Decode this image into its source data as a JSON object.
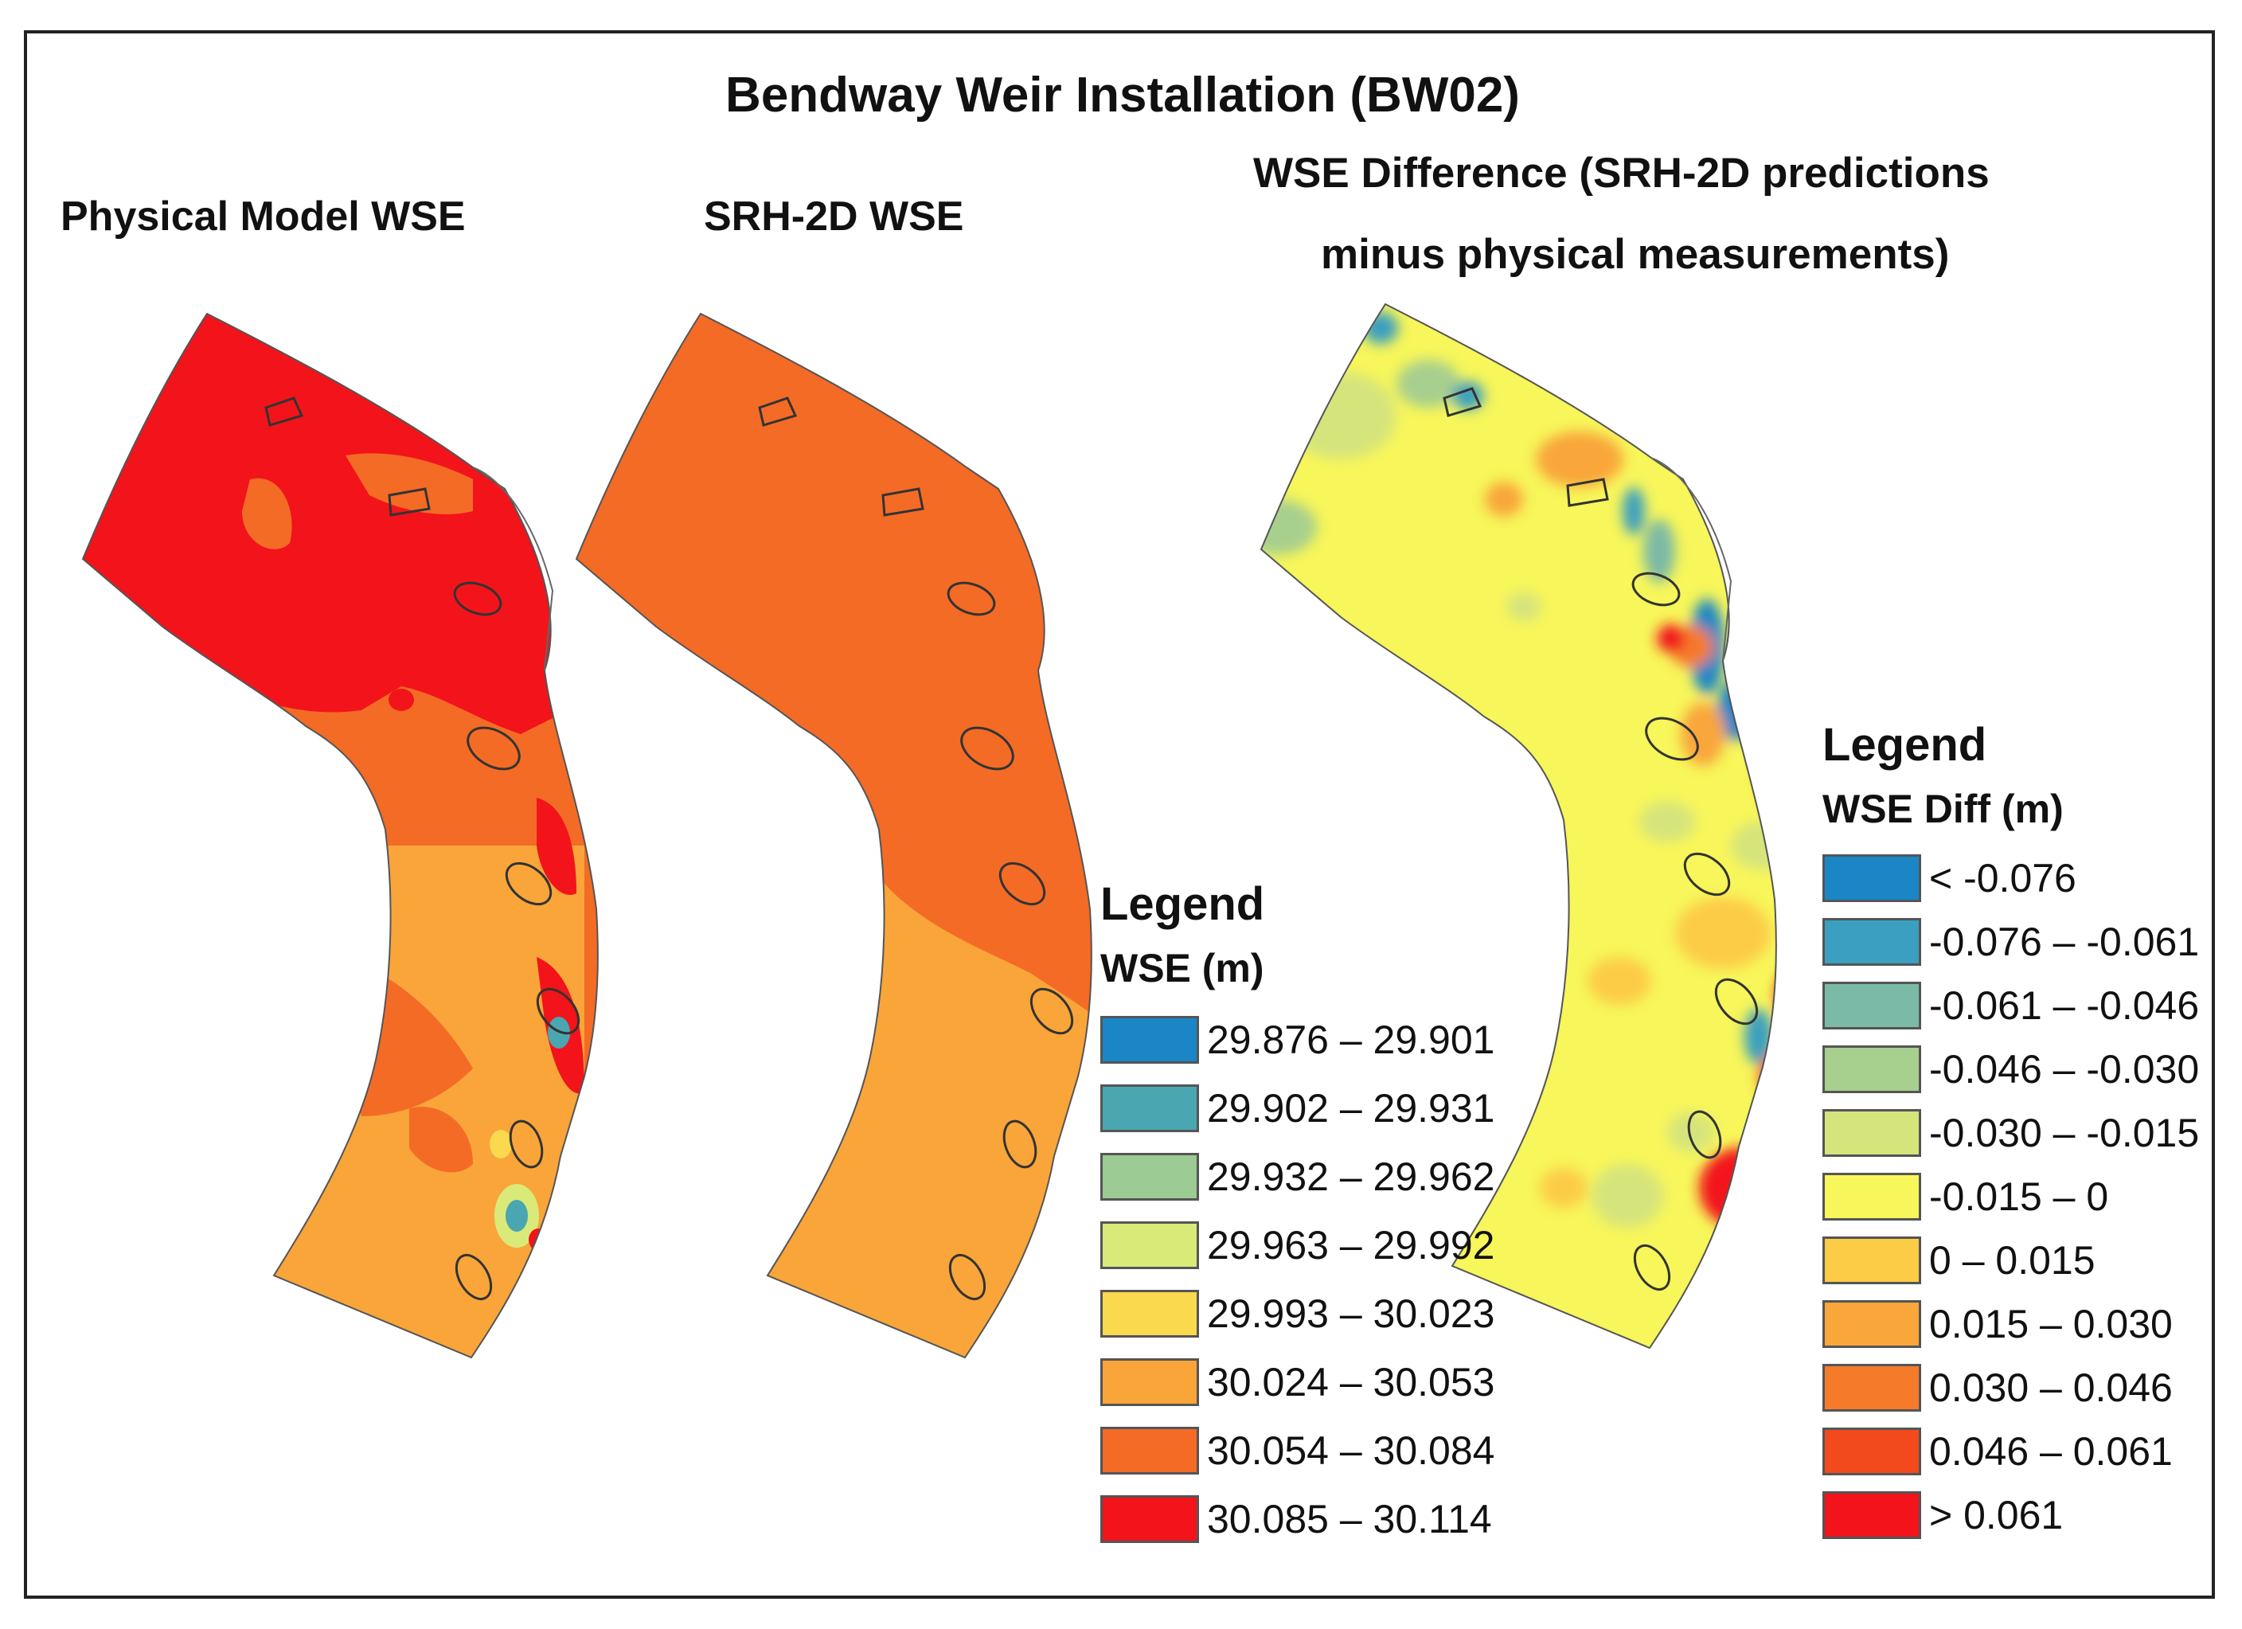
{
  "figure": {
    "title": "Bendway Weir Installation (BW02)",
    "panel_titles": {
      "physical": "Physical Model WSE",
      "srh": "SRH-2D WSE",
      "difference_line1": "WSE Difference (SRH-2D predictions",
      "difference_line2": "minus physical measurements)"
    }
  },
  "legend_wse": {
    "title": "Legend",
    "subtitle": "WSE (m)",
    "classes": [
      {
        "label": "29.876 – 29.901",
        "color": "#1a86c6"
      },
      {
        "label": "29.902 – 29.931",
        "color": "#4aa6b0"
      },
      {
        "label": "29.932 – 29.962",
        "color": "#9ccb94"
      },
      {
        "label": "29.963 – 29.992",
        "color": "#daea78"
      },
      {
        "label": "29.993 – 30.023",
        "color": "#fbd94e"
      },
      {
        "label": "30.024 – 30.053",
        "color": "#f9a53a"
      },
      {
        "label": "30.054 – 30.084",
        "color": "#f46b26"
      },
      {
        "label": "30.085 – 30.114",
        "color": "#f2141a"
      }
    ]
  },
  "legend_diff": {
    "title": "Legend",
    "subtitle": "WSE Diff (m)",
    "classes": [
      {
        "label": "< -0.076",
        "color": "#1a86c6"
      },
      {
        "label": "-0.076 – -0.061",
        "color": "#3a9fc0"
      },
      {
        "label": "-0.061 – -0.046",
        "color": "#7bbaa6"
      },
      {
        "label": "-0.046 – -0.030",
        "color": "#a7cf8e"
      },
      {
        "label": "-0.030 – -0.015",
        "color": "#d6e47c"
      },
      {
        "label": "-0.015 – 0",
        "color": "#f7f65a"
      },
      {
        "label": "0 – 0.015",
        "color": "#fccc46"
      },
      {
        "label": "0.015 – 0.030",
        "color": "#f9a63a"
      },
      {
        "label": "0.030 – 0.046",
        "color": "#f57a2a"
      },
      {
        "label": "0.046 – 0.061",
        "color": "#f24a1c"
      },
      {
        "label": "> 0.061",
        "color": "#f2141a"
      }
    ]
  },
  "colors": {
    "frame": "#222222",
    "weir_outline": "#333333"
  }
}
